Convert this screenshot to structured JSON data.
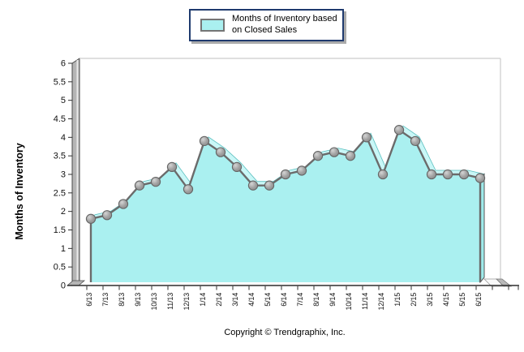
{
  "legend": {
    "label": "Months of Inventory based on Closed Sales"
  },
  "footer": {
    "copyright": "Copyright © Trendgraphix, Inc."
  },
  "chart_data": {
    "type": "area",
    "style": "3d-ribbon",
    "title": "",
    "xlabel": "",
    "ylabel": "Months of Inventory",
    "ylim": [
      0,
      6
    ],
    "ytick_step": 0.5,
    "grid": false,
    "legend_position": "top-center",
    "categories": [
      "6/13",
      "7/13",
      "8/13",
      "9/13",
      "10/13",
      "11/13",
      "12/13",
      "1/14",
      "2/14",
      "3/14",
      "4/14",
      "5/14",
      "6/14",
      "7/14",
      "8/14",
      "9/14",
      "10/14",
      "11/14",
      "12/14",
      "1/15",
      "2/15",
      "3/15",
      "4/15",
      "5/15",
      "6/15"
    ],
    "series": [
      {
        "name": "Months of Inventory based on Closed Sales",
        "values": [
          1.8,
          1.9,
          2.2,
          2.7,
          2.8,
          3.2,
          2.6,
          3.9,
          3.6,
          3.2,
          2.7,
          2.7,
          3.0,
          3.1,
          3.5,
          3.6,
          3.5,
          4.0,
          3.0,
          4.2,
          3.9,
          3.0,
          3.0,
          3.0,
          2.9
        ]
      }
    ],
    "colors": {
      "area_fill": "#aaf0f0",
      "ribbon_top": "#c9f7f7",
      "ribbon_edge": "#5bbfbf",
      "side_face": "#9febeb",
      "line": "#6b6b6b",
      "marker_stroke": "#666666",
      "marker_fill_light": "#d4d4d4",
      "marker_fill_dark": "#8a8a8a",
      "axis_wall": "#b5b5b5",
      "plot_border": "#cccccc",
      "axis_line": "#2f2f2f",
      "tick_text": "#111111",
      "legend_border": "#1f3a6e"
    }
  }
}
